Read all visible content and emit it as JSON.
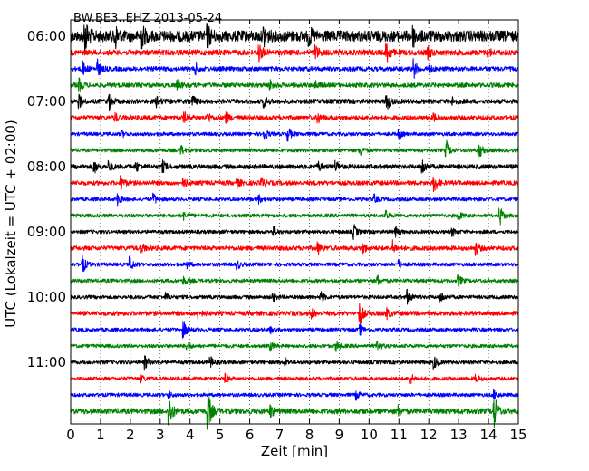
{
  "chart_data": {
    "type": "line",
    "title": "BW.BE3..EHZ 2013-05-24",
    "xlabel": "Zeit  [min]",
    "ylabel": "UTC (Lokalzeit = UTC + 02:00)",
    "xlim": [
      0,
      15
    ],
    "x_ticks": [
      "0",
      "1",
      "2",
      "3",
      "4",
      "5",
      "6",
      "7",
      "8",
      "9",
      "10",
      "11",
      "12",
      "13",
      "14",
      "15"
    ],
    "y_ticks": [
      "06:00",
      "07:00",
      "08:00",
      "09:00",
      "10:00",
      "11:00"
    ],
    "row_interval_min": 15,
    "grid": "dotted-vertical",
    "colors": [
      "#000000",
      "#ff0000",
      "#0000ff",
      "#008000"
    ],
    "series": [
      {
        "time": "06:00",
        "color": "#000000",
        "noise": 6,
        "events": [
          [
            0.5,
            16
          ],
          [
            1.5,
            12
          ],
          [
            2.4,
            10
          ],
          [
            4.6,
            10
          ],
          [
            6.5,
            9
          ],
          [
            8.0,
            8
          ],
          [
            11.5,
            8
          ]
        ]
      },
      {
        "time": "06:15",
        "color": "#ff0000",
        "noise": 3,
        "events": [
          [
            6.3,
            12
          ],
          [
            8.2,
            8
          ],
          [
            10.6,
            12
          ],
          [
            12.0,
            5
          ],
          [
            14.0,
            4
          ]
        ]
      },
      {
        "time": "06:30",
        "color": "#0000ff",
        "noise": 2.5,
        "events": [
          [
            0.4,
            8
          ],
          [
            0.9,
            9
          ],
          [
            4.2,
            5
          ],
          [
            11.5,
            10
          ],
          [
            12.0,
            4
          ]
        ]
      },
      {
        "time": "06:45",
        "color": "#008000",
        "noise": 2.5,
        "events": [
          [
            0.3,
            6
          ],
          [
            3.6,
            4
          ],
          [
            6.7,
            5
          ],
          [
            8.2,
            4
          ]
        ]
      },
      {
        "time": "07:00",
        "color": "#000000",
        "noise": 2.5,
        "events": [
          [
            0.3,
            6
          ],
          [
            1.3,
            8
          ],
          [
            2.9,
            5
          ],
          [
            4.1,
            5
          ],
          [
            6.5,
            5
          ],
          [
            10.6,
            10
          ],
          [
            12.8,
            4
          ]
        ]
      },
      {
        "time": "07:15",
        "color": "#ff0000",
        "noise": 2.5,
        "events": [
          [
            1.5,
            4
          ],
          [
            3.8,
            6
          ],
          [
            4.6,
            5
          ],
          [
            5.2,
            6
          ],
          [
            8.3,
            5
          ],
          [
            12.2,
            3
          ]
        ]
      },
      {
        "time": "07:30",
        "color": "#0000ff",
        "noise": 2,
        "events": [
          [
            1.7,
            4
          ],
          [
            6.5,
            6
          ],
          [
            7.3,
            7
          ],
          [
            11.0,
            4
          ]
        ]
      },
      {
        "time": "07:45",
        "color": "#008000",
        "noise": 2,
        "events": [
          [
            3.7,
            5
          ],
          [
            9.7,
            6
          ],
          [
            12.6,
            9
          ],
          [
            13.7,
            8
          ]
        ]
      },
      {
        "time": "08:00",
        "color": "#000000",
        "noise": 2.5,
        "events": [
          [
            0.8,
            6
          ],
          [
            1.3,
            5
          ],
          [
            2.2,
            5
          ],
          [
            3.1,
            5
          ],
          [
            8.3,
            5
          ],
          [
            8.9,
            6
          ],
          [
            11.8,
            8
          ]
        ]
      },
      {
        "time": "08:15",
        "color": "#ff0000",
        "noise": 2.5,
        "events": [
          [
            1.7,
            7
          ],
          [
            3.8,
            4
          ],
          [
            5.6,
            4
          ],
          [
            6.4,
            5
          ],
          [
            12.2,
            9
          ]
        ]
      },
      {
        "time": "08:30",
        "color": "#0000ff",
        "noise": 2,
        "events": [
          [
            1.6,
            6
          ],
          [
            2.8,
            5
          ],
          [
            6.3,
            4
          ],
          [
            10.2,
            4
          ]
        ]
      },
      {
        "time": "08:45",
        "color": "#008000",
        "noise": 2,
        "events": [
          [
            3.8,
            4
          ],
          [
            10.6,
            4
          ],
          [
            13.0,
            5
          ],
          [
            14.4,
            9
          ]
        ]
      },
      {
        "time": "09:00",
        "color": "#000000",
        "noise": 2,
        "events": [
          [
            6.8,
            5
          ],
          [
            9.5,
            7
          ],
          [
            10.9,
            5
          ],
          [
            12.8,
            4
          ]
        ]
      },
      {
        "time": "09:15",
        "color": "#ff0000",
        "noise": 2.5,
        "events": [
          [
            2.4,
            4
          ],
          [
            8.3,
            6
          ],
          [
            9.8,
            6
          ],
          [
            10.8,
            7
          ],
          [
            13.6,
            6
          ]
        ]
      },
      {
        "time": "09:30",
        "color": "#0000ff",
        "noise": 2,
        "events": [
          [
            0.4,
            10
          ],
          [
            2.0,
            7
          ],
          [
            3.9,
            4
          ],
          [
            5.6,
            4
          ],
          [
            11.0,
            4
          ]
        ]
      },
      {
        "time": "09:45",
        "color": "#008000",
        "noise": 2,
        "events": [
          [
            3.8,
            4
          ],
          [
            10.3,
            5
          ],
          [
            13.0,
            6
          ]
        ]
      },
      {
        "time": "10:00",
        "color": "#000000",
        "noise": 2,
        "events": [
          [
            3.2,
            4
          ],
          [
            6.8,
            4
          ],
          [
            8.4,
            5
          ],
          [
            11.3,
            7
          ],
          [
            12.4,
            6
          ]
        ]
      },
      {
        "time": "10:15",
        "color": "#ff0000",
        "noise": 2.5,
        "events": [
          [
            4.3,
            4
          ],
          [
            8.1,
            4
          ],
          [
            9.7,
            12
          ],
          [
            10.6,
            5
          ]
        ]
      },
      {
        "time": "10:30",
        "color": "#0000ff",
        "noise": 2,
        "events": [
          [
            3.8,
            8
          ],
          [
            6.7,
            3
          ],
          [
            9.7,
            5
          ]
        ]
      },
      {
        "time": "10:45",
        "color": "#008000",
        "noise": 2,
        "events": [
          [
            3.9,
            4
          ],
          [
            6.7,
            4
          ],
          [
            8.9,
            5
          ],
          [
            10.3,
            6
          ]
        ]
      },
      {
        "time": "11:00",
        "color": "#000000",
        "noise": 2,
        "events": [
          [
            2.5,
            7
          ],
          [
            4.7,
            5
          ],
          [
            7.2,
            4
          ],
          [
            12.2,
            6
          ]
        ]
      },
      {
        "time": "11:15",
        "color": "#ff0000",
        "noise": 2,
        "events": [
          [
            2.4,
            3
          ],
          [
            5.2,
            4
          ],
          [
            11.4,
            5
          ],
          [
            13.6,
            4
          ]
        ]
      },
      {
        "time": "11:30",
        "color": "#0000ff",
        "noise": 2,
        "events": [
          [
            3.3,
            3
          ],
          [
            9.6,
            4
          ],
          [
            14.2,
            4
          ]
        ]
      },
      {
        "time": "11:45",
        "color": "#008000",
        "noise": 3,
        "events": [
          [
            3.3,
            18
          ],
          [
            4.6,
            24
          ],
          [
            6.7,
            6
          ],
          [
            11.0,
            5
          ],
          [
            14.2,
            18
          ]
        ]
      }
    ]
  }
}
